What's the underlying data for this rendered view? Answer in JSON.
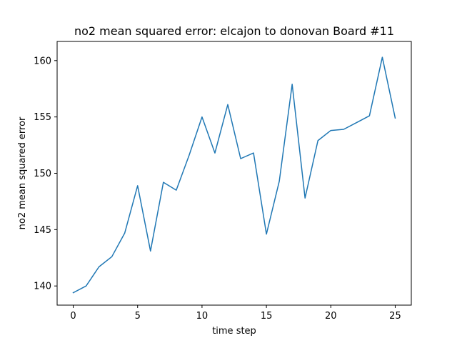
{
  "chart_data": {
    "type": "line",
    "title": "no2 mean squared error: elcajon to donovan Board #11",
    "xlabel": "time step",
    "ylabel": "no2 mean squared error",
    "xlim": [
      -1.25,
      26.25
    ],
    "ylim": [
      138.3,
      161.7
    ],
    "xticks": [
      0,
      5,
      10,
      15,
      20,
      25
    ],
    "yticks": [
      140,
      145,
      150,
      155,
      160
    ],
    "grid": false,
    "series_color": "#1f77b4",
    "series": [
      {
        "x": [
          0,
          1,
          2,
          3,
          4,
          5,
          6,
          7,
          8,
          9,
          10,
          11,
          12,
          13,
          14,
          15,
          16,
          17,
          18,
          19,
          20,
          21,
          22,
          23,
          24,
          25
        ],
        "values": [
          139.4,
          140.0,
          141.7,
          142.6,
          144.7,
          148.9,
          143.1,
          149.2,
          148.5,
          151.6,
          155.0,
          151.8,
          156.1,
          151.3,
          151.8,
          144.6,
          149.3,
          157.9,
          147.8,
          152.9,
          153.8,
          153.9,
          154.5,
          155.1,
          160.3,
          154.9
        ]
      }
    ]
  }
}
